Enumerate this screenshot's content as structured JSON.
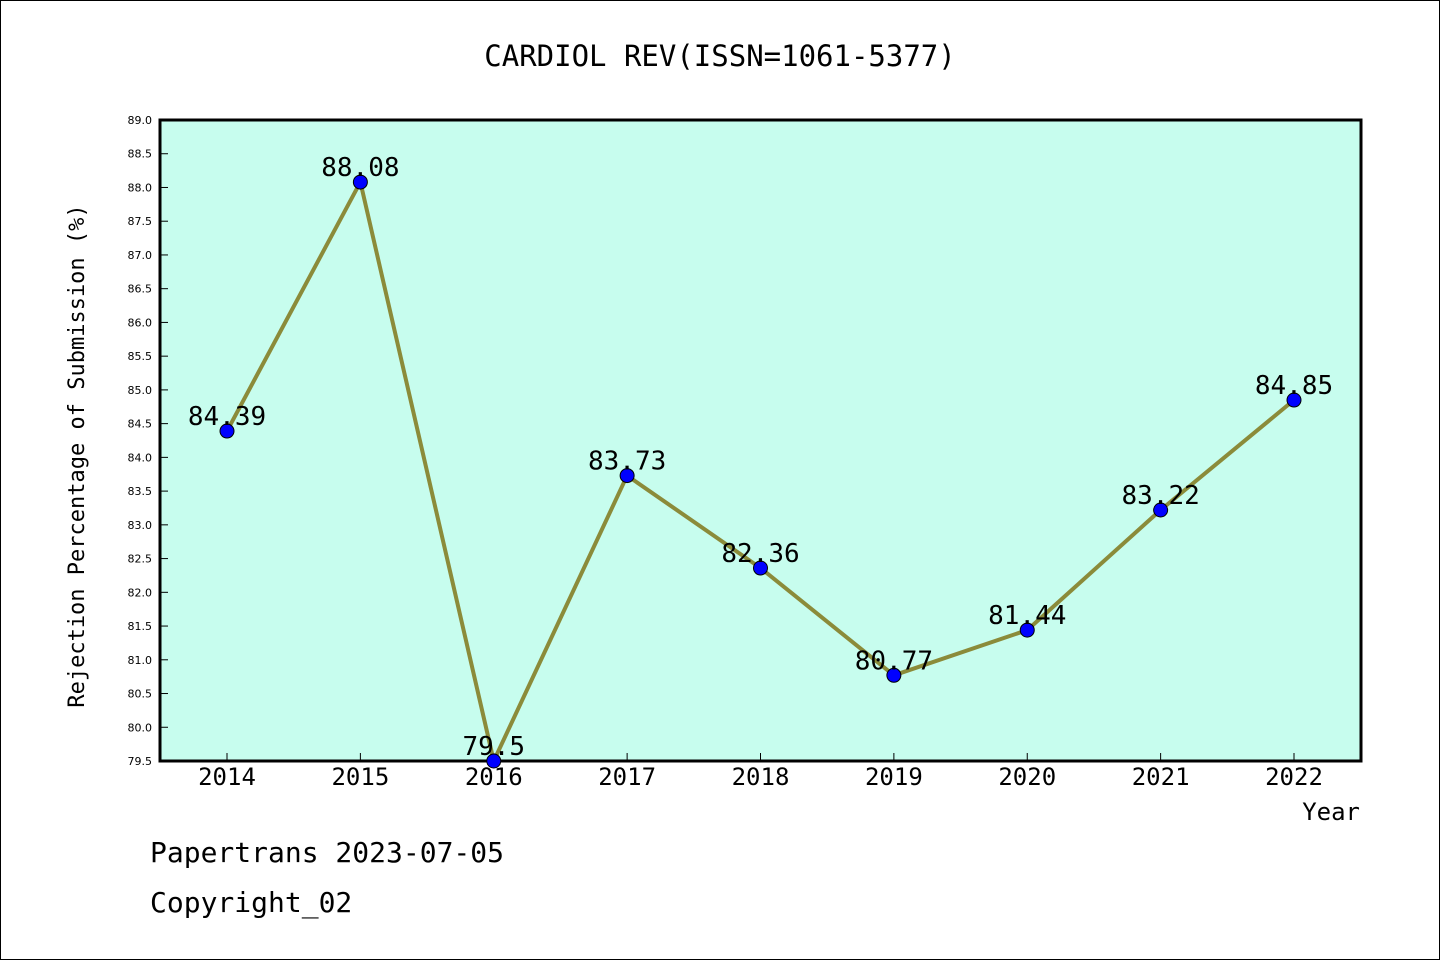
{
  "chart_data": {
    "type": "line",
    "title": "CARDIOL REV(ISSN=1061-5377)",
    "xlabel": "Year",
    "ylabel": "Rejection Percentage of Submission (%)",
    "categories": [
      "2014",
      "2015",
      "2016",
      "2017",
      "2018",
      "2019",
      "2020",
      "2021",
      "2022"
    ],
    "series": [
      {
        "values": [
          84.39,
          88.08,
          79.5,
          83.73,
          82.36,
          80.77,
          81.44,
          83.22,
          84.85
        ]
      }
    ],
    "data_labels": [
      "84.39",
      "88.08",
      "79.5",
      "83.73",
      "82.36",
      "80.77",
      "81.44",
      "83.22",
      "84.85"
    ],
    "ylim": [
      79.5,
      89.0
    ],
    "yticks": [
      "79.5",
      "80.0",
      "80.5",
      "81.0",
      "81.5",
      "82.0",
      "82.5",
      "83.0",
      "83.5",
      "84.0",
      "84.5",
      "85.0",
      "85.5",
      "86.0",
      "86.5",
      "87.0",
      "87.5",
      "88.0",
      "88.5",
      "89.0"
    ],
    "grid": false,
    "colors": {
      "plot_background": "#c7fdee",
      "line": "#8b8b3a",
      "marker": "#0000ff"
    }
  },
  "footer": {
    "source": "Papertrans 2023-07-05",
    "copyright": "Copyright_02"
  }
}
